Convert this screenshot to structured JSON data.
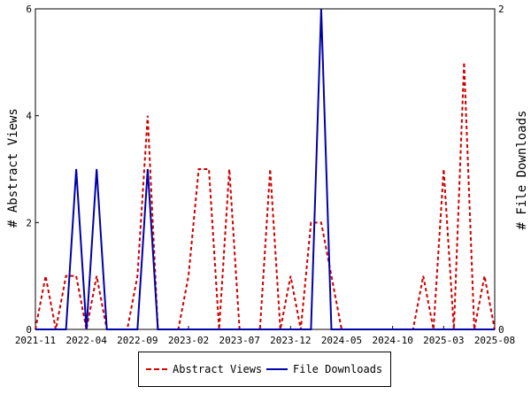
{
  "chart_data": {
    "type": "line",
    "ylabel_left": "# Abstract Views",
    "ylabel_right": "# File Downloads",
    "x_tick_labels": [
      "2021-11",
      "2022-04",
      "2022-09",
      "2023-02",
      "2023-07",
      "2023-12",
      "2024-05",
      "2024-10",
      "2025-03",
      "2025-08"
    ],
    "y_left_ticks": [
      "0",
      "2",
      "4",
      "6"
    ],
    "y_right_ticks": [
      "0",
      "2"
    ],
    "y_left_range": [
      0,
      6
    ],
    "y_right_range": [
      0,
      2
    ],
    "x_range_months": [
      "2021-11",
      "2025-08"
    ],
    "grid": false,
    "legend_placement": "bottom-center",
    "series": [
      {
        "name": "Abstract Views",
        "axis": "left",
        "color": "#cc0000",
        "style": "dashed",
        "points": [
          [
            "2021-11",
            0
          ],
          [
            "2021-12",
            1
          ],
          [
            "2022-01",
            0
          ],
          [
            "2022-02",
            1
          ],
          [
            "2022-03",
            1
          ],
          [
            "2022-04",
            0
          ],
          [
            "2022-05",
            1
          ],
          [
            "2022-06",
            0
          ],
          [
            "2022-07",
            0
          ],
          [
            "2022-08",
            0
          ],
          [
            "2022-09",
            1
          ],
          [
            "2022-10",
            4
          ],
          [
            "2022-11",
            0
          ],
          [
            "2022-12",
            0
          ],
          [
            "2023-01",
            0
          ],
          [
            "2023-02",
            1
          ],
          [
            "2023-03",
            3
          ],
          [
            "2023-04",
            3
          ],
          [
            "2023-05",
            0
          ],
          [
            "2023-06",
            3
          ],
          [
            "2023-07",
            0
          ],
          [
            "2023-08",
            0
          ],
          [
            "2023-09",
            0
          ],
          [
            "2023-10",
            3
          ],
          [
            "2023-11",
            0
          ],
          [
            "2023-12",
            1
          ],
          [
            "2024-01",
            0
          ],
          [
            "2024-02",
            2
          ],
          [
            "2024-03",
            2
          ],
          [
            "2024-04",
            1
          ],
          [
            "2024-05",
            0
          ],
          [
            "2024-06",
            0
          ],
          [
            "2024-07",
            0
          ],
          [
            "2024-08",
            0
          ],
          [
            "2024-09",
            0
          ],
          [
            "2024-10",
            0
          ],
          [
            "2024-11",
            0
          ],
          [
            "2024-12",
            0
          ],
          [
            "2025-01",
            1
          ],
          [
            "2025-02",
            0
          ],
          [
            "2025-03",
            3
          ],
          [
            "2025-04",
            0
          ],
          [
            "2025-05",
            5
          ],
          [
            "2025-06",
            0
          ],
          [
            "2025-07",
            1
          ],
          [
            "2025-08",
            0
          ]
        ]
      },
      {
        "name": "File Downloads",
        "axis": "right",
        "color": "#0000aa",
        "style": "solid",
        "points": [
          [
            "2021-11",
            0
          ],
          [
            "2021-12",
            0
          ],
          [
            "2022-01",
            0
          ],
          [
            "2022-02",
            0
          ],
          [
            "2022-03",
            1
          ],
          [
            "2022-04",
            0
          ],
          [
            "2022-05",
            1
          ],
          [
            "2022-06",
            0
          ],
          [
            "2022-07",
            0
          ],
          [
            "2022-08",
            0
          ],
          [
            "2022-09",
            0
          ],
          [
            "2022-10",
            1
          ],
          [
            "2022-11",
            0
          ],
          [
            "2022-12",
            0
          ],
          [
            "2023-01",
            0
          ],
          [
            "2023-02",
            0
          ],
          [
            "2023-03",
            0
          ],
          [
            "2023-04",
            0
          ],
          [
            "2023-05",
            0
          ],
          [
            "2023-06",
            0
          ],
          [
            "2023-07",
            0
          ],
          [
            "2023-08",
            0
          ],
          [
            "2023-09",
            0
          ],
          [
            "2023-10",
            0
          ],
          [
            "2023-11",
            0
          ],
          [
            "2023-12",
            0
          ],
          [
            "2024-01",
            0
          ],
          [
            "2024-02",
            0
          ],
          [
            "2024-03",
            2
          ],
          [
            "2024-04",
            0
          ],
          [
            "2024-05",
            0
          ],
          [
            "2024-06",
            0
          ],
          [
            "2024-07",
            0
          ],
          [
            "2024-08",
            0
          ],
          [
            "2024-09",
            0
          ],
          [
            "2024-10",
            0
          ],
          [
            "2024-11",
            0
          ],
          [
            "2024-12",
            0
          ],
          [
            "2025-01",
            0
          ],
          [
            "2025-02",
            0
          ],
          [
            "2025-03",
            0
          ],
          [
            "2025-04",
            0
          ],
          [
            "2025-05",
            0
          ],
          [
            "2025-06",
            0
          ],
          [
            "2025-07",
            0
          ],
          [
            "2025-08",
            0
          ]
        ]
      }
    ]
  }
}
